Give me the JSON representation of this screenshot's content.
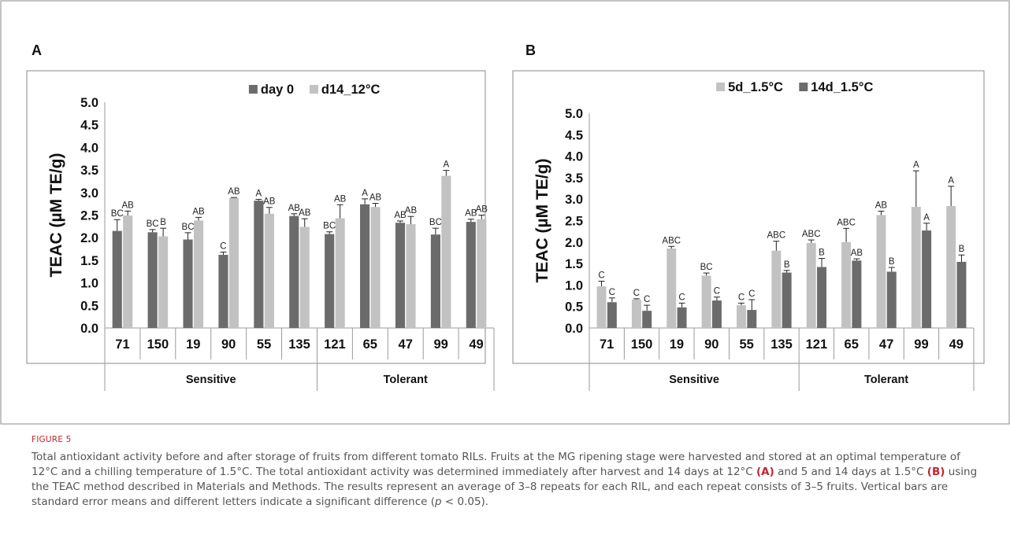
{
  "figure": {
    "label": "FIGURE 5",
    "caption": {
      "intro": "Total antioxidant activity before and after storage of fruits from different tomato RILs. Fruits at the MG ripening stage were harvested and stored at an optimal temperature of 12°C and a chilling temperature of 1.5°C. The total antioxidant activity was determined immediately after harvest and 14 days at 12°C ",
      "ref_a": "(A)",
      "mid": " and 5 and 14 days at 1.5°C ",
      "ref_b": "(B)",
      "rest": " using the TEAC method described in Materials and Methods. The results represent an average of 3–8 repeats for each RIL, and each repeat consists of 3–5 fruits. Vertical bars are standard error means and different letters indicate a significant difference (",
      "p_symbol": "p",
      "tail": " < 0.05)."
    }
  },
  "chart_data": [
    {
      "panel": "A",
      "type": "bar",
      "ylabel": "TEAC (µM TE/g)",
      "ylim": [
        0,
        5
      ],
      "yticks": [
        "0.0",
        "0.5",
        "1.0",
        "1.5",
        "2.0",
        "2.5",
        "3.0",
        "3.5",
        "4.0",
        "4.5",
        "5.0"
      ],
      "legend_position": "top",
      "categories": [
        "71",
        "150",
        "19",
        "90",
        "55",
        "135",
        "121",
        "65",
        "47",
        "99",
        "49"
      ],
      "groups": [
        {
          "label": "Sensitive",
          "count": 6
        },
        {
          "label": "Tolerant",
          "count": 5
        }
      ],
      "series": [
        {
          "name": "day 0",
          "color": "#6b6b6b",
          "values": [
            2.15,
            2.12,
            1.96,
            1.62,
            2.82,
            2.48,
            2.08,
            2.74,
            2.33,
            2.07,
            2.35
          ],
          "errors": [
            0.25,
            0.06,
            0.15,
            0.06,
            0.03,
            0.05,
            0.05,
            0.12,
            0.04,
            0.14,
            0.06
          ],
          "letters": [
            "BC",
            "BC",
            "BC",
            "C",
            "A",
            "AB",
            "BC",
            "A",
            "AB",
            "BC",
            "AB"
          ]
        },
        {
          "name": "d14_12°C",
          "color": "#c2c2c2",
          "values": [
            2.49,
            2.03,
            2.38,
            2.88,
            2.53,
            2.24,
            2.43,
            2.68,
            2.3,
            3.37,
            2.41
          ],
          "errors": [
            0.1,
            0.18,
            0.07,
            0.01,
            0.14,
            0.18,
            0.3,
            0.08,
            0.17,
            0.12,
            0.09
          ],
          "letters": [
            "AB",
            "B",
            "AB",
            "AB",
            "AB",
            "AB",
            "AB",
            "AB",
            "AB",
            "A",
            "AB"
          ]
        }
      ]
    },
    {
      "panel": "B",
      "type": "bar",
      "ylabel": "TEAC (µM TE/g)",
      "ylim": [
        0,
        5
      ],
      "yticks": [
        "0.0",
        "0.5",
        "1.0",
        "1.5",
        "2.0",
        "2.5",
        "3.0",
        "3.5",
        "4.0",
        "4.5",
        "5.0"
      ],
      "legend_position": "top",
      "categories": [
        "71",
        "150",
        "19",
        "90",
        "55",
        "135",
        "121",
        "65",
        "47",
        "99",
        "49"
      ],
      "groups": [
        {
          "label": "Sensitive",
          "count": 6
        },
        {
          "label": "Tolerant",
          "count": 5
        }
      ],
      "series": [
        {
          "name": "5d_1.5°C",
          "color": "#c2c2c2",
          "values": [
            0.97,
            0.66,
            1.85,
            1.22,
            0.53,
            1.8,
            1.98,
            2.0,
            2.63,
            2.82,
            2.84
          ],
          "errors": [
            0.12,
            0.02,
            0.05,
            0.06,
            0.05,
            0.22,
            0.07,
            0.32,
            0.09,
            0.84,
            0.46
          ],
          "letters": [
            "C",
            "C",
            "ABC",
            "BC",
            "C",
            "ABC",
            "ABC",
            "ABC",
            "AB",
            "A",
            "A"
          ]
        },
        {
          "name": "14d_1.5°C",
          "color": "#6b6b6b",
          "values": [
            0.6,
            0.4,
            0.48,
            0.64,
            0.42,
            1.29,
            1.42,
            1.57,
            1.31,
            2.27,
            1.54
          ],
          "errors": [
            0.1,
            0.13,
            0.1,
            0.08,
            0.24,
            0.05,
            0.2,
            0.04,
            0.1,
            0.17,
            0.16
          ],
          "letters": [
            "C",
            "C",
            "C",
            "C",
            "C",
            "B",
            "B",
            "AB",
            "B",
            "A",
            "B"
          ]
        }
      ]
    }
  ]
}
